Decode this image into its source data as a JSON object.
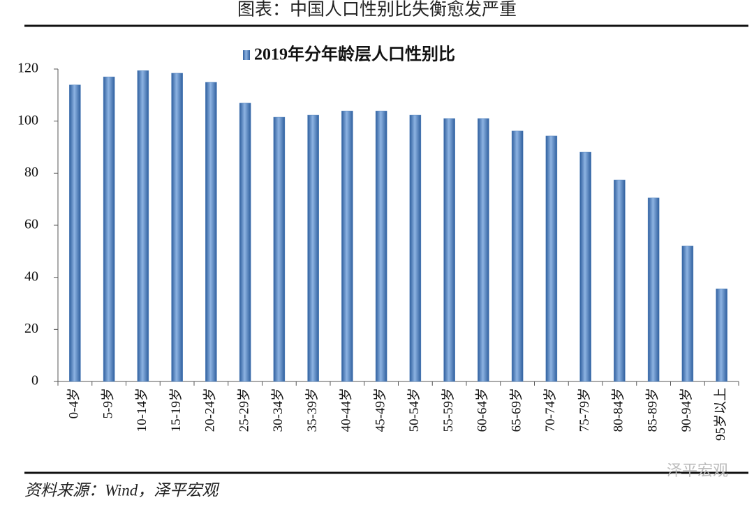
{
  "header": {
    "title": "图表：中国人口性别比失衡愈发严重"
  },
  "chart_data": {
    "type": "bar",
    "categories": [
      "0-4岁",
      "5-9岁",
      "10-14岁",
      "15-19岁",
      "20-24岁",
      "25-29岁",
      "30-34岁",
      "35-39岁",
      "40-44岁",
      "45-49岁",
      "50-54岁",
      "55-59岁",
      "60-64岁",
      "65-69岁",
      "70-74岁",
      "75-79岁",
      "80-84岁",
      "85-89岁",
      "90-94岁",
      "95岁以上"
    ],
    "series": [
      {
        "name": "2019年分年龄层人口性别比",
        "color": "#4f81bd",
        "values": [
          113.9,
          117.0,
          119.4,
          118.4,
          114.9,
          106.9,
          101.5,
          102.3,
          103.9,
          103.9,
          102.3,
          101.0,
          101.0,
          96.2,
          94.3,
          88.1,
          77.4,
          70.5,
          52.0,
          35.6
        ]
      }
    ],
    "ylim": [
      0,
      120
    ],
    "yticks": [
      0,
      20,
      40,
      60,
      80,
      100,
      120
    ],
    "legend": "top"
  },
  "footer": {
    "source": "资料来源：Wind，泽平宏观",
    "watermark": "泽平宏观"
  }
}
